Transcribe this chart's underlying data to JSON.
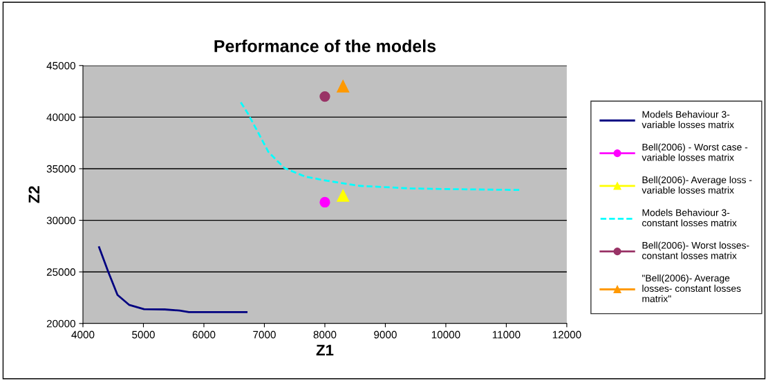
{
  "chart_data": {
    "type": "line",
    "title": "Performance of the models",
    "xlabel": "Z1",
    "ylabel": "Z2",
    "xlim": [
      4000,
      12000
    ],
    "xticks": [
      4000,
      5000,
      6000,
      7000,
      8000,
      9000,
      10000,
      11000,
      12000
    ],
    "ylim": [
      20000,
      45000
    ],
    "yticks": [
      20000,
      25000,
      30000,
      35000,
      40000,
      45000
    ],
    "grid": "y",
    "legend": "right",
    "series": [
      {
        "name": "Models Behaviour 3-\nvariable losses matrix",
        "color": "#000080",
        "line_style": "solid",
        "marker": "none",
        "x": [
          4267,
          4419,
          4571,
          4762,
          5010,
          5352,
          5600,
          5752,
          6705
        ],
        "values": [
          27390,
          25000,
          22770,
          21810,
          21390,
          21360,
          21250,
          21100,
          21100
        ]
      },
      {
        "name": "Bell(2006) - Worst case -\nvariable losses matrix",
        "color": "#ff00ff",
        "marker": "circle",
        "x": [
          8000
        ],
        "values": [
          31750
        ]
      },
      {
        "name": "Bell(2006)- Average loss -\nvariable losses matrix",
        "color": "#ffff00",
        "marker": "triangle",
        "x": [
          8300
        ],
        "values": [
          32400
        ]
      },
      {
        "name": "Models Behaviour 3-\nconstant losses matrix",
        "color": "#00ffff",
        "line_style": "dashed",
        "marker": "none",
        "x": [
          6610,
          6724,
          6895,
          7067,
          7333,
          7676,
          8038,
          8571,
          9410,
          10095,
          11238
        ],
        "values": [
          41430,
          40380,
          38520,
          36620,
          35060,
          34230,
          33830,
          33340,
          33090,
          33020,
          32940
        ]
      },
      {
        "name": "Bell(2006)- Worst losses-\nconstant losses matrix",
        "color": "#993366",
        "marker": "circle",
        "x": [
          8000
        ],
        "values": [
          42000
        ]
      },
      {
        "name": "\"Bell(2006)- Average\nlosses- constant losses\nmatrix\"",
        "color": "#ff9900",
        "marker": "triangle",
        "x": [
          8300
        ],
        "values": [
          43000
        ]
      }
    ]
  }
}
